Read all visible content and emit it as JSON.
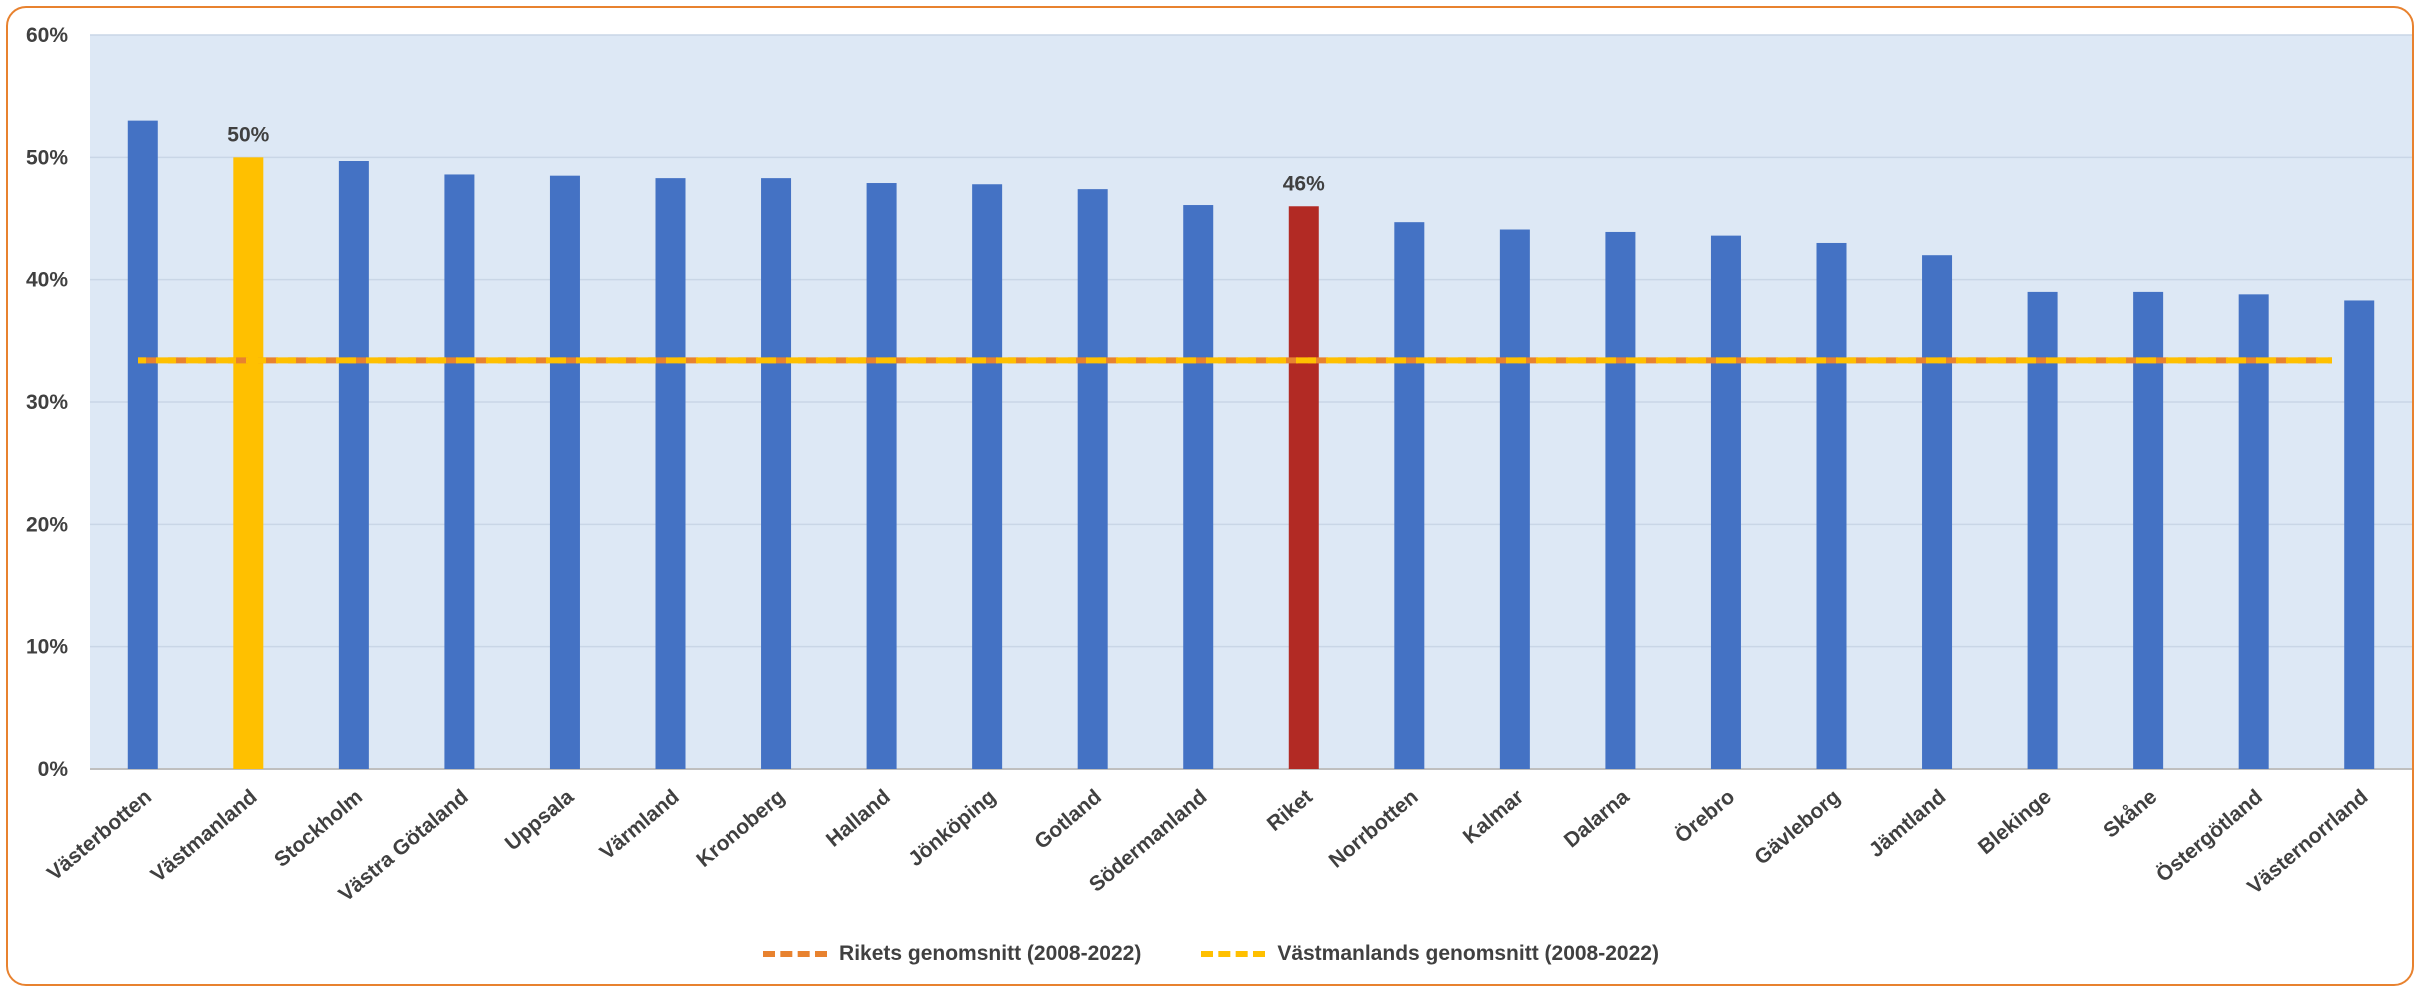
{
  "chart_data": {
    "type": "bar",
    "categories": [
      "Västerbotten",
      "Västmanland",
      "Stockholm",
      "Västra Götaland",
      "Uppsala",
      "Värmland",
      "Kronoberg",
      "Halland",
      "Jönköping",
      "Gotland",
      "Södermanland",
      "Riket",
      "Norrbotten",
      "Kalmar",
      "Dalarna",
      "Örebro",
      "Gävleborg",
      "Jämtland",
      "Blekinge",
      "Skåne",
      "Östergötland",
      "Västernorrland"
    ],
    "values": [
      0.53,
      0.5,
      0.497,
      0.486,
      0.485,
      0.483,
      0.483,
      0.479,
      0.478,
      0.474,
      0.461,
      0.46,
      0.447,
      0.441,
      0.439,
      0.436,
      0.43,
      0.42,
      0.39,
      0.39,
      0.388,
      0.383
    ],
    "bar_colors": [
      "#4472c4",
      "#ffc000",
      "#4472c4",
      "#4472c4",
      "#4472c4",
      "#4472c4",
      "#4472c4",
      "#4472c4",
      "#4472c4",
      "#4472c4",
      "#4472c4",
      "#b22a24",
      "#4472c4",
      "#4472c4",
      "#4472c4",
      "#4472c4",
      "#4472c4",
      "#4472c4",
      "#4472c4",
      "#4472c4",
      "#4472c4",
      "#4472c4"
    ],
    "data_labels": [
      {
        "index": 1,
        "text": "50%"
      },
      {
        "index": 11,
        "text": "46%"
      }
    ],
    "ylim": [
      0,
      0.6
    ],
    "yticks": [
      "0%",
      "10%",
      "20%",
      "30%",
      "40%",
      "50%",
      "60%"
    ],
    "reference_lines": [
      {
        "name": "Rikets genomsnitt (2008-2022)",
        "value": 0.334,
        "color": "#e8822f",
        "style": "dashed"
      },
      {
        "name": "Västmanlands genomsnitt (2008-2022)",
        "value": 0.334,
        "color": "#ffc000",
        "style": "dashed"
      }
    ],
    "plot_background": "#dde8f5",
    "grid": true,
    "legend_position": "bottom"
  }
}
